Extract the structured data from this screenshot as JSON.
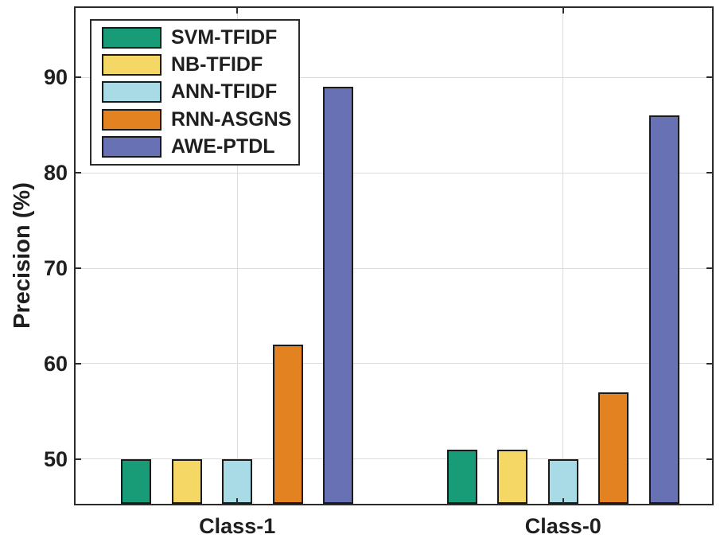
{
  "chart_data": {
    "type": "bar",
    "title": "",
    "xlabel": "",
    "ylabel": "Precision (%)",
    "categories": [
      "Class-1",
      "Class-0"
    ],
    "series": [
      {
        "name": "SVM-TFIDF",
        "color": "#189b77",
        "values": [
          50,
          51
        ]
      },
      {
        "name": "NB-TFIDF",
        "color": "#f5d765",
        "values": [
          50,
          51
        ]
      },
      {
        "name": "ANN-TFIDF",
        "color": "#a8dbe5",
        "values": [
          50,
          50
        ]
      },
      {
        "name": "RNN-ASGNS",
        "color": "#e28221",
        "values": [
          62,
          57
        ]
      },
      {
        "name": "AWE-PTDL",
        "color": "#6971b5",
        "values": [
          89,
          86
        ]
      }
    ],
    "yticks": [
      50,
      60,
      70,
      80,
      90
    ],
    "ylim": [
      45.3,
      97.3
    ],
    "grid": "on",
    "legend_position": "top-left",
    "style": {
      "axis_color": "#2b2b2b",
      "grid_color": "#dcdcdc",
      "bar_edge_color": "#1a1a1a",
      "text_color": "#1f1f1f",
      "background": "#ffffff"
    }
  }
}
